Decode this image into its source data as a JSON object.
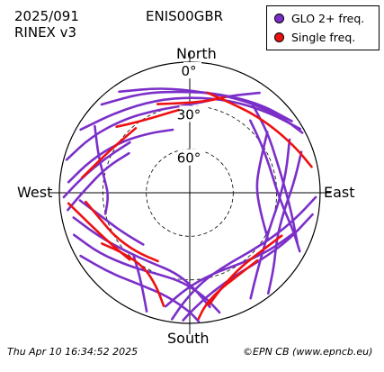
{
  "header": {
    "date": "2025/091",
    "rinex": "RINEX v3",
    "station": "ENIS00GBR"
  },
  "legend": {
    "items": [
      {
        "label": "GLO 2+ freq.",
        "color": "#7b2fc9"
      },
      {
        "label": "Single freq.",
        "color": "#ee1111"
      }
    ]
  },
  "compass": {
    "north": "North",
    "south": "South",
    "east": "East",
    "west": "West"
  },
  "footer": {
    "timestamp": "Thu Apr 10 16:34:52 2025",
    "credit": "©EPN CB (www.epncb.eu)"
  },
  "chart_data": {
    "type": "polar_skyplot",
    "radial_axis": "elevation (deg), 90 at centre",
    "elevation_ticks": [
      "0°",
      "30°",
      "60°"
    ],
    "elevation_rings": [
      0,
      30,
      60
    ],
    "series": [
      {
        "name": "GLO 2+ freq.",
        "color": "#7b2fc9",
        "tracks": [
          {
            "points": [
              [
                285,
                2
              ],
              [
                300,
                12
              ],
              [
                318,
                22
              ],
              [
                335,
                28
              ],
              [
                352,
                30
              ],
              [
                8,
                27
              ],
              [
                22,
                18
              ],
              [
                35,
                6
              ]
            ]
          },
          {
            "points": [
              [
                300,
                3
              ],
              [
                318,
                15
              ],
              [
                340,
                22
              ],
              [
                2,
                24
              ],
              [
                25,
                20
              ],
              [
                45,
                12
              ],
              [
                60,
                2
              ]
            ]
          },
          {
            "points": [
              [
                315,
                4
              ],
              [
                335,
                14
              ],
              [
                355,
                20
              ],
              [
                15,
                19
              ],
              [
                38,
                12
              ],
              [
                55,
                4
              ]
            ]
          },
          {
            "points": [
              [
                325,
                5
              ],
              [
                345,
                15
              ],
              [
                8,
                20
              ],
              [
                30,
                16
              ],
              [
                50,
                8
              ],
              [
                62,
                2
              ]
            ]
          },
          {
            "points": [
              [
                275,
                6
              ],
              [
                288,
                18
              ],
              [
                305,
                30
              ],
              [
                325,
                40
              ],
              [
                345,
                45
              ]
            ]
          },
          {
            "points": [
              [
                268,
                3
              ],
              [
                278,
                15
              ],
              [
                292,
                27
              ],
              [
                310,
                36
              ]
            ]
          },
          {
            "points": [
              [
                262,
                5
              ],
              [
                272,
                18
              ],
              [
                287,
                30
              ],
              [
                303,
                40
              ]
            ]
          },
          {
            "points": [
              [
                40,
                25
              ],
              [
                55,
                30
              ],
              [
                72,
                32
              ],
              [
                88,
                30
              ],
              [
                100,
                24
              ],
              [
                110,
                14
              ],
              [
                118,
                4
              ]
            ]
          },
          {
            "points": [
              [
                35,
                15
              ],
              [
                52,
                22
              ],
              [
                70,
                26
              ],
              [
                88,
                24
              ],
              [
                102,
                18
              ],
              [
                115,
                8
              ]
            ]
          },
          {
            "points": [
              [
                62,
                12
              ],
              [
                78,
                22
              ],
              [
                95,
                28
              ],
              [
                110,
                30
              ],
              [
                125,
                27
              ],
              [
                140,
                18
              ],
              [
                150,
                6
              ]
            ]
          },
          {
            "points": [
              [
                70,
                8
              ],
              [
                85,
                18
              ],
              [
                102,
                24
              ],
              [
                118,
                22
              ],
              [
                132,
                12
              ],
              [
                142,
                2
              ]
            ]
          },
          {
            "points": [
              [
                92,
                3
              ],
              [
                104,
                15
              ],
              [
                118,
                25
              ],
              [
                135,
                32
              ],
              [
                155,
                34
              ],
              [
                172,
                28
              ],
              [
                183,
                15
              ],
              [
                188,
                2
              ]
            ]
          },
          {
            "points": [
              [
                100,
                4
              ],
              [
                115,
                14
              ],
              [
                132,
                22
              ],
              [
                150,
                25
              ],
              [
                167,
                20
              ],
              [
                178,
                10
              ],
              [
                183,
                2
              ]
            ]
          },
          {
            "points": [
              [
                250,
                5
              ],
              [
                236,
                15
              ],
              [
                218,
                25
              ],
              [
                200,
                30
              ],
              [
                184,
                28
              ],
              [
                172,
                18
              ],
              [
                166,
                5
              ]
            ]
          },
          {
            "points": [
              [
                258,
                8
              ],
              [
                245,
                20
              ],
              [
                228,
                30
              ],
              [
                208,
                35
              ],
              [
                190,
                34
              ],
              [
                178,
                25
              ],
              [
                170,
                10
              ]
            ]
          },
          {
            "points": [
              [
                240,
                3
              ],
              [
                225,
                12
              ],
              [
                208,
                18
              ],
              [
                192,
                17
              ],
              [
                180,
                8
              ],
              [
                176,
                1
              ]
            ]
          },
          {
            "points": [
              [
                266,
                14
              ],
              [
                256,
                26
              ],
              [
                240,
                36
              ],
              [
                222,
                42
              ]
            ]
          },
          {
            "points": [
              [
                110,
                12
              ],
              [
                126,
                22
              ],
              [
                145,
                30
              ],
              [
                165,
                32
              ],
              [
                182,
                24
              ],
              [
                192,
                10
              ]
            ]
          },
          {
            "points": [
              [
                305,
                10
              ],
              [
                292,
                22
              ],
              [
                280,
                30
              ],
              [
                268,
                34
              ],
              [
                256,
                30
              ]
            ]
          },
          {
            "points": [
              [
                52,
                22
              ],
              [
                68,
                38
              ],
              [
                85,
                44
              ],
              [
                104,
                40
              ],
              [
                120,
                28
              ]
            ]
          },
          {
            "points": [
              [
                200,
                3
              ],
              [
                205,
                14
              ],
              [
                212,
                24
              ],
              [
                222,
                32
              ]
            ]
          }
        ]
      },
      {
        "name": "Single freq.",
        "color": "#ee1111",
        "tracks": [
          {
            "points": [
              [
                340,
                25
              ],
              [
                356,
                28
              ],
              [
                10,
                26
              ],
              [
                20,
                20
              ]
            ]
          },
          {
            "points": [
              [
                10,
                20
              ],
              [
                25,
                22
              ],
              [
                40,
                20
              ],
              [
                55,
                16
              ],
              [
                68,
                10
              ],
              [
                78,
                4
              ]
            ]
          },
          {
            "points": [
              [
                312,
                22
              ],
              [
                325,
                30
              ],
              [
                340,
                33
              ],
              [
                355,
                32
              ]
            ]
          },
          {
            "points": [
              [
                278,
                15
              ],
              [
                290,
                24
              ],
              [
                305,
                30
              ],
              [
                320,
                32
              ]
            ]
          },
          {
            "points": [
              [
                265,
                18
              ],
              [
                255,
                25
              ],
              [
                240,
                30
              ],
              [
                222,
                35
              ],
              [
                205,
                38
              ]
            ]
          },
          {
            "points": [
              [
                240,
                20
              ],
              [
                228,
                28
              ],
              [
                212,
                30
              ],
              [
                200,
                22
              ],
              [
                193,
                10
              ]
            ]
          },
          {
            "points": [
              [
                135,
                24
              ],
              [
                150,
                24
              ],
              [
                163,
                20
              ],
              [
                172,
                12
              ],
              [
                176,
                3
              ]
            ]
          },
          {
            "points": [
              [
                115,
                20
              ],
              [
                128,
                26
              ],
              [
                145,
                28
              ],
              [
                160,
                22
              ],
              [
                170,
                12
              ]
            ]
          },
          {
            "points": [
              [
                265,
                6
              ],
              [
                255,
                16
              ],
              [
                240,
                24
              ],
              [
                222,
                28
              ]
            ]
          }
        ]
      }
    ]
  }
}
